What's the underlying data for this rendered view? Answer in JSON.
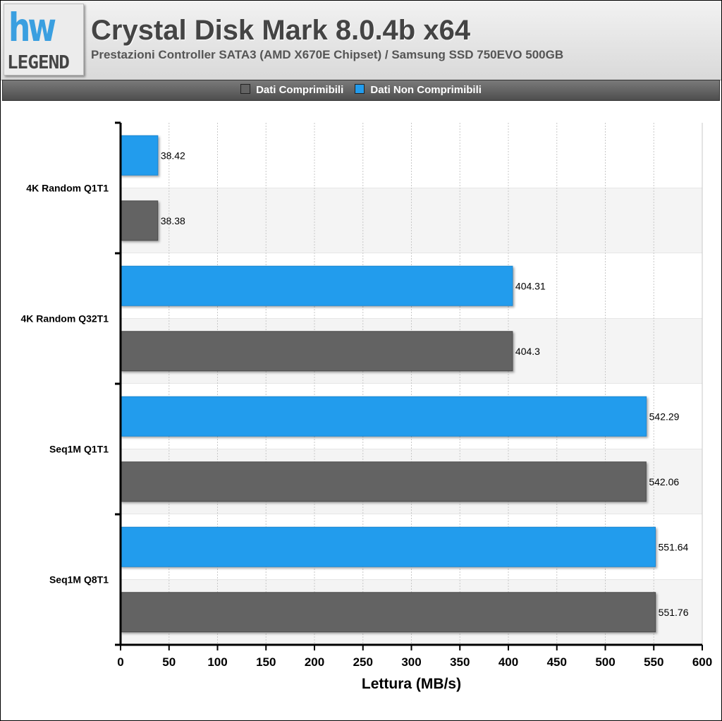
{
  "header": {
    "logo_mark": "hw",
    "logo_word": "LEGEND",
    "title": "Crystal Disk Mark 8.0.4b x64",
    "subtitle": "Prestazioni Controller SATA3 (AMD X670E Chipset) / Samsung SSD 750EVO 500GB"
  },
  "colors": {
    "compressible": "#636363",
    "non_compressible": "#229ced",
    "band_alt": "#f4f4f4"
  },
  "chart_data": {
    "type": "bar",
    "orientation": "horizontal",
    "title": "Crystal Disk Mark 8.0.4b x64",
    "subtitle": "Prestazioni Controller SATA3 (AMD X670E Chipset) / Samsung SSD 750EVO 500GB",
    "categories": [
      "4K Random Q1T1",
      "4K Random Q32T1",
      "Seq1M Q1T1",
      "Seq1M Q8T1"
    ],
    "series": [
      {
        "name": "Dati Non Comprimibili",
        "values": [
          38.42,
          404.31,
          542.29,
          551.64
        ]
      },
      {
        "name": "Dati Comprimibili",
        "values": [
          38.38,
          404.3,
          542.06,
          551.76
        ]
      }
    ],
    "legend": [
      "Dati Comprimibili",
      "Dati Non Comprimibili"
    ],
    "legend_position": "top",
    "xlabel": "Lettura (MB/s)",
    "ylabel": "",
    "xlim": [
      0,
      600
    ],
    "xticks": [
      0,
      50,
      100,
      150,
      200,
      250,
      300,
      350,
      400,
      450,
      500,
      550,
      600
    ],
    "grid": true
  }
}
